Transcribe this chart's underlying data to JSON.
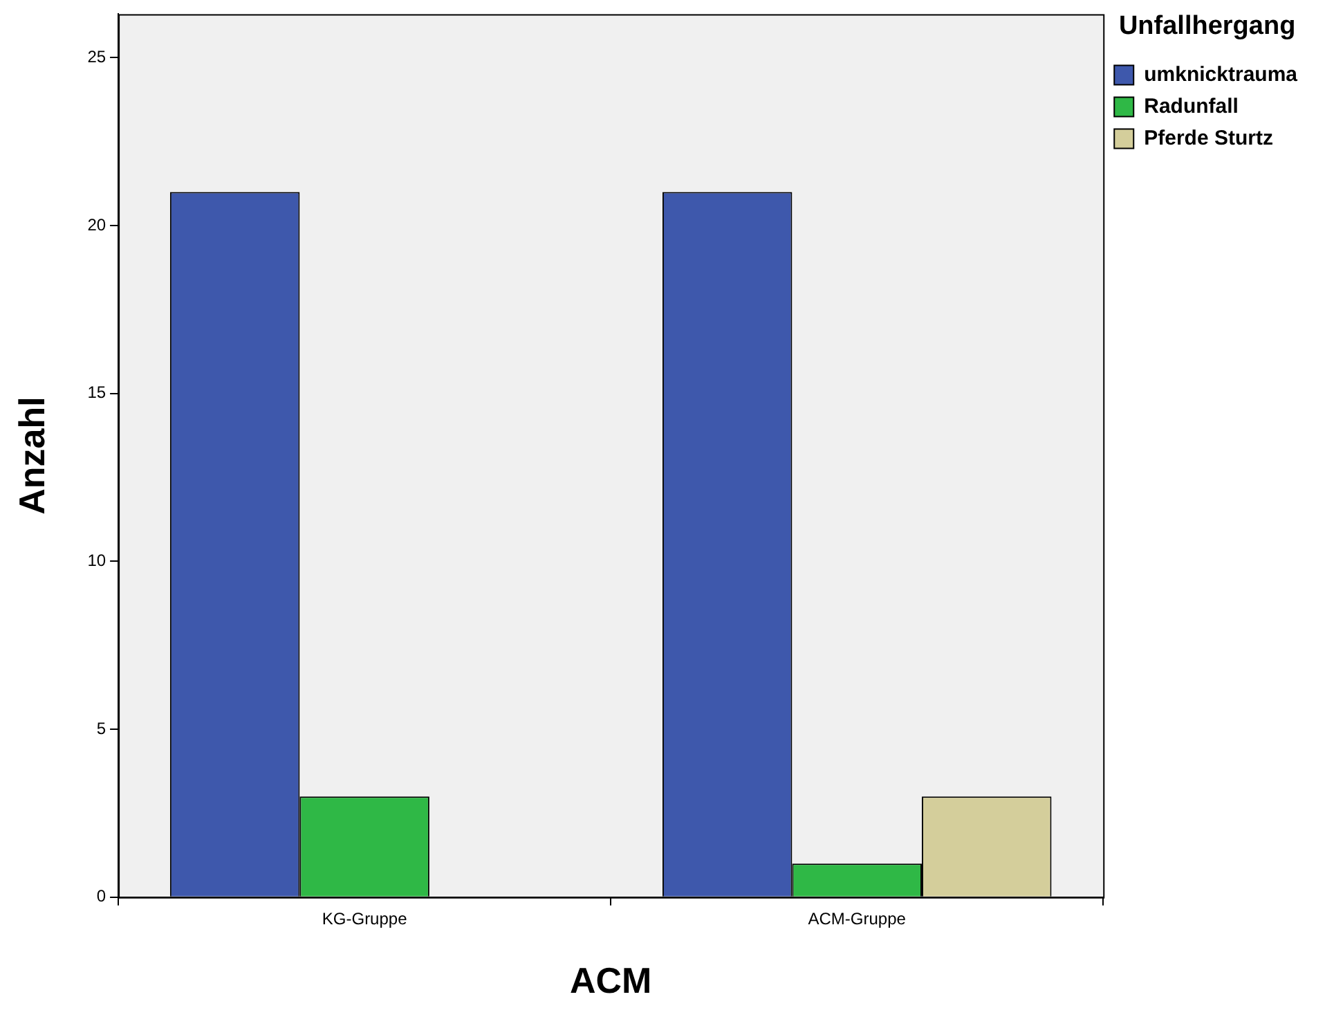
{
  "chart_data": {
    "type": "bar",
    "xlabel": "ACM",
    "ylabel": "Anzahl",
    "legend_title": "Unfallhergang",
    "categories": [
      "KG-Gruppe",
      "ACM-Gruppe"
    ],
    "series": [
      {
        "name": "umknicktrauma",
        "color": "#3e58ac",
        "values": [
          21,
          21
        ]
      },
      {
        "name": "Radunfall",
        "color": "#2fb846",
        "values": [
          3,
          1
        ]
      },
      {
        "name": "Pferde Sturtz",
        "color": "#d4ce9b",
        "values": [
          0,
          3
        ]
      }
    ],
    "ylim": [
      0,
      26.3
    ],
    "yticks": [
      0,
      5,
      10,
      15,
      20,
      25
    ],
    "legend": "top right"
  }
}
